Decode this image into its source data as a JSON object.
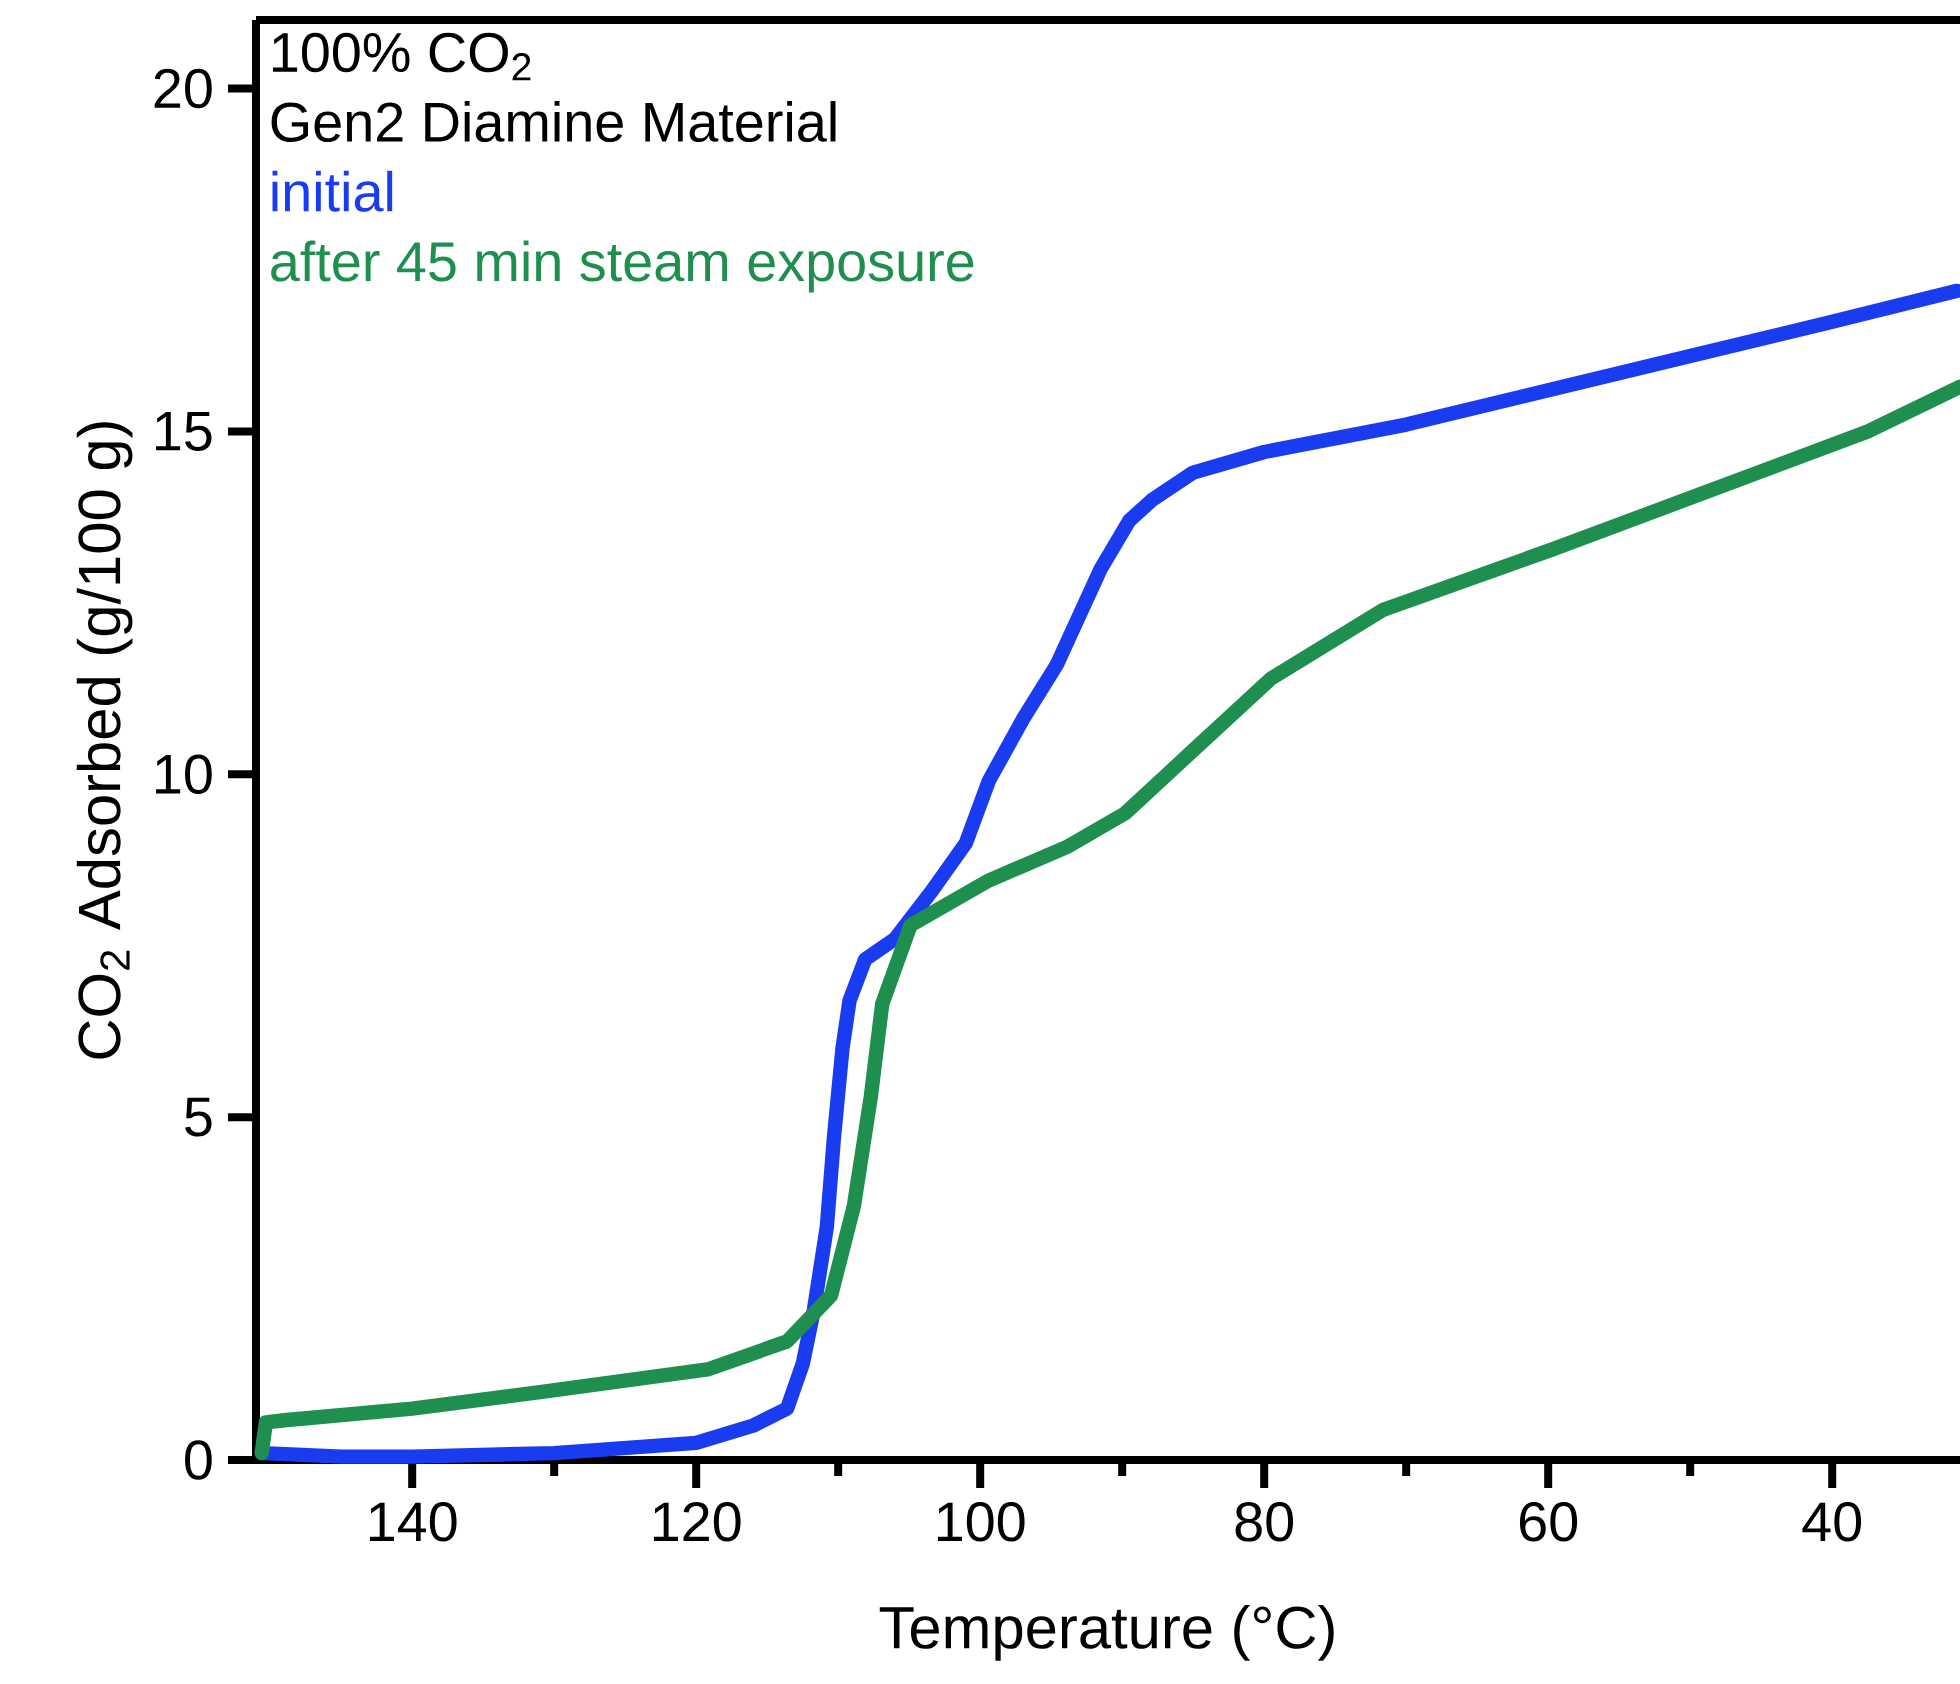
{
  "chart_data": {
    "type": "line",
    "xlabel": "Temperature (°C)",
    "ylabel": "CO$_{2}$ Adsorbed (g/100 g)",
    "annotations": [
      "100% CO$_{2}$",
      "Gen2 Diamine Material"
    ],
    "xlim": [
      151,
      31
    ],
    "ylim": [
      0,
      21
    ],
    "xticks": [
      140,
      {
        "value": 130,
        "label": null
      },
      120,
      {
        "value": 110,
        "label": null
      },
      100,
      {
        "value": 90,
        "label": null
      },
      80,
      {
        "value": 70,
        "label": null
      },
      60,
      {
        "value": 50,
        "label": null
      },
      40
    ],
    "yticks": [
      0,
      5,
      10,
      15,
      20
    ],
    "legend": "top left",
    "grid": false,
    "marker": "none",
    "line_style": "solid",
    "series": [
      {
        "name": "initial",
        "color": "#1a3cf0",
        "x": [
          150.5,
          145,
          140,
          130,
          120,
          116,
          113.6,
          112.5,
          111.7,
          110.8,
          110.3,
          109.7,
          109.2,
          108.1,
          106,
          103.4,
          101,
          99.4,
          97,
          94.6,
          91.5,
          89.5,
          87.9,
          85,
          80,
          70,
          60,
          50,
          40,
          31.2
        ],
        "values": [
          0.1,
          0.05,
          0.05,
          0.1,
          0.25,
          0.5,
          0.75,
          1.4,
          2.2,
          3.4,
          4.7,
          6.0,
          6.7,
          7.3,
          7.6,
          8.3,
          9.0,
          9.9,
          10.8,
          11.6,
          13.0,
          13.7,
          14.0,
          14.4,
          14.7,
          15.1,
          15.6,
          16.1,
          16.6,
          17.05
        ]
      },
      {
        "name": "after 45 min steam exposure",
        "color": "#1f8f50",
        "x": [
          150.6,
          150.3,
          149,
          140,
          131,
          119.2,
          113.6,
          110.5,
          108.9,
          107.7,
          106.9,
          104.9,
          99.4,
          93.8,
          89.8,
          85.1,
          79.5,
          71.6,
          59.7,
          47.8,
          37.5,
          31.0
        ],
        "values": [
          0.1,
          0.55,
          0.58,
          0.75,
          0.99,
          1.32,
          1.73,
          2.4,
          3.7,
          5.3,
          6.65,
          7.8,
          8.45,
          8.95,
          9.43,
          10.33,
          11.4,
          12.4,
          13.28,
          14.2,
          15.0,
          15.65
        ]
      }
    ]
  }
}
